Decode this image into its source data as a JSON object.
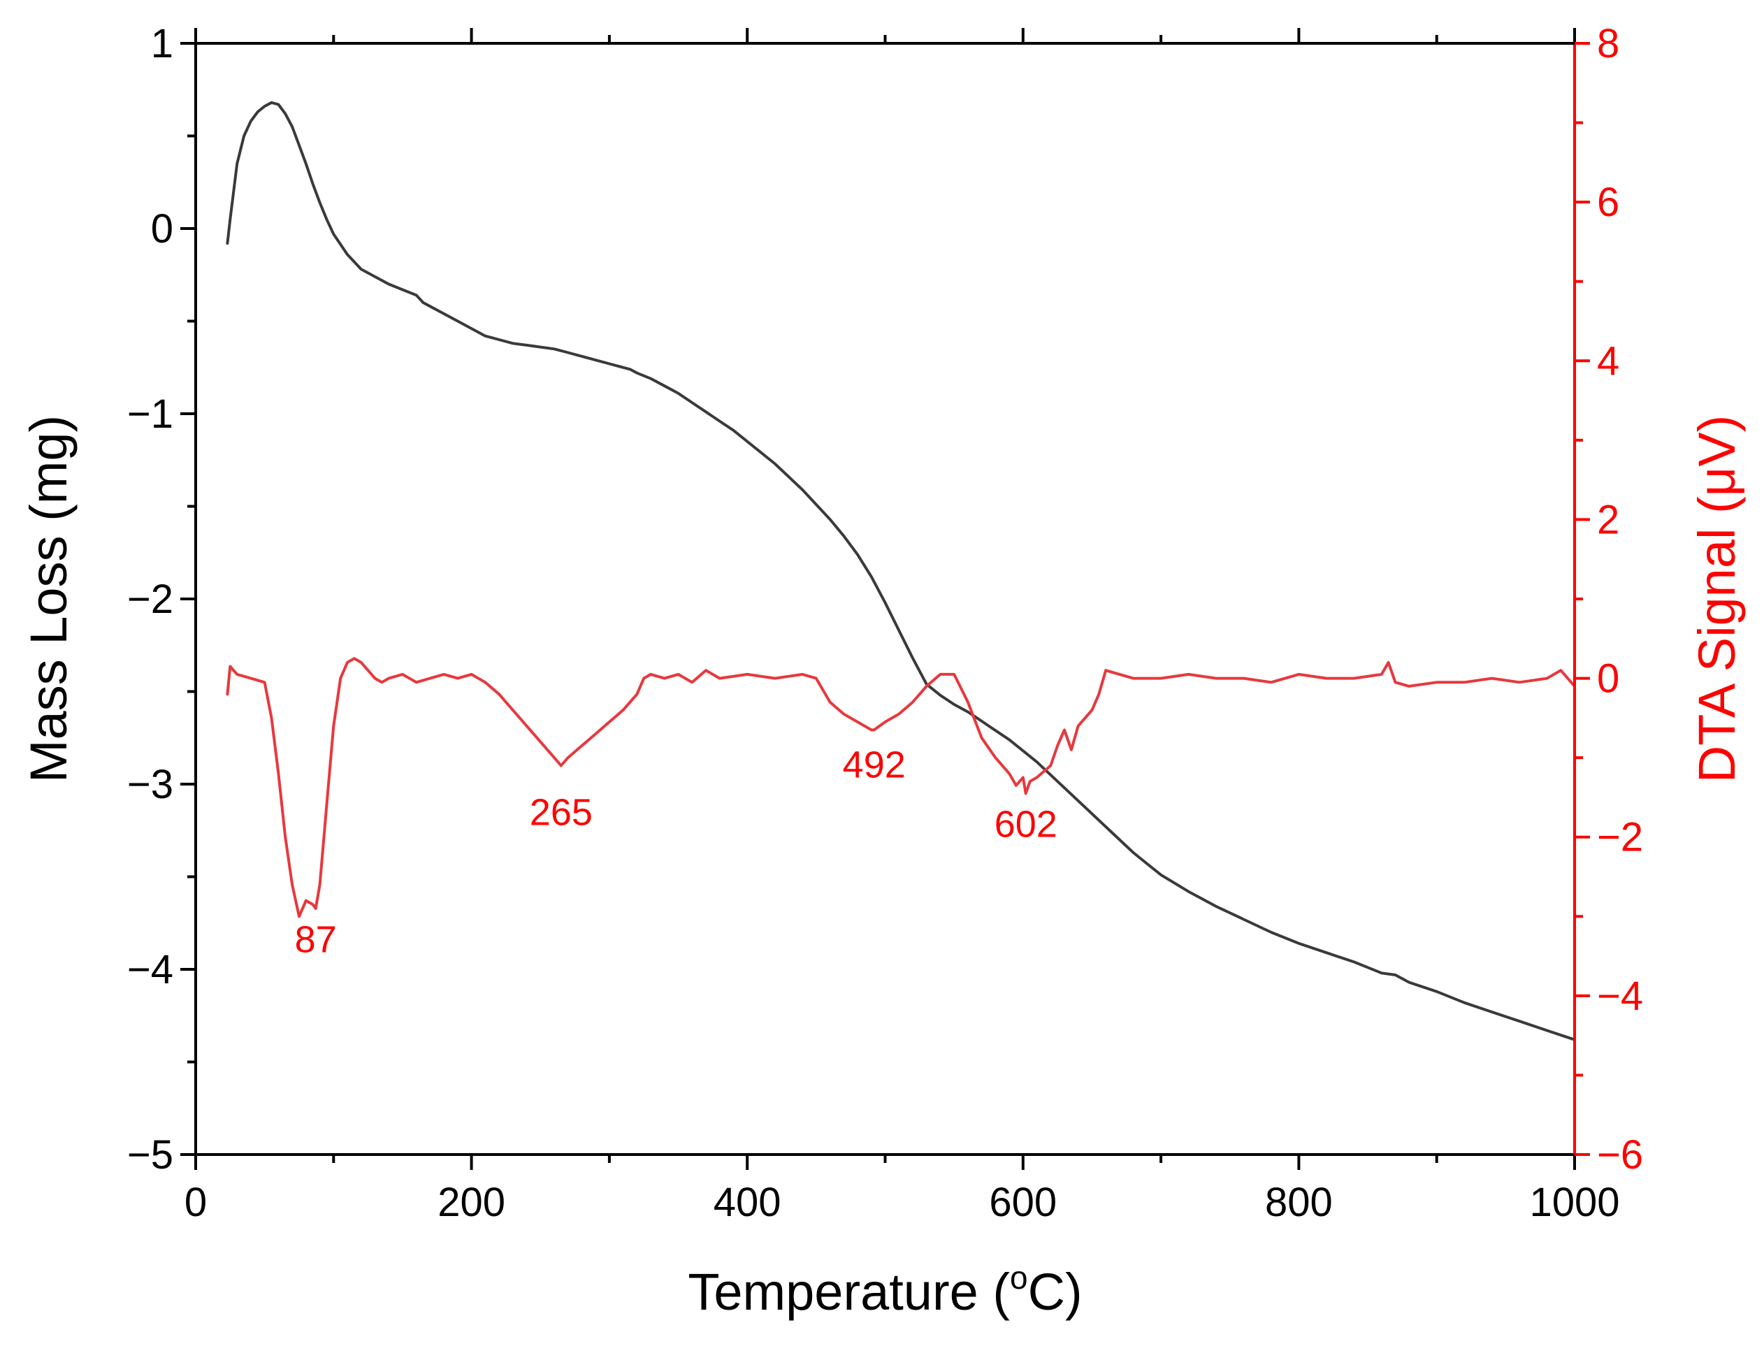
{
  "chart_data": {
    "type": "line",
    "title": "",
    "xlabel": "Temperature (oC)",
    "xlabel_parts": {
      "main": "Temperature (",
      "sup": "o",
      "rest": "C)"
    },
    "ylabel": "Mass Loss (mg)",
    "y2label": "DTA Signal (μV)",
    "xlim": [
      0,
      1000
    ],
    "ylim": [
      -5,
      1
    ],
    "y2lim": [
      -6,
      8
    ],
    "grid": false,
    "legend": "none",
    "x_ticks": [
      "0",
      "200",
      "400",
      "600",
      "800",
      "1000"
    ],
    "y_ticks": [
      "−5",
      "−4",
      "−3",
      "−2",
      "−1",
      "0",
      "1"
    ],
    "y2_ticks": [
      "−6",
      "−4",
      "−2",
      "0",
      "2",
      "4",
      "6",
      "8"
    ],
    "colors": {
      "mass_series": "#3a3a3a",
      "dta_series": "#e8383d",
      "right_axis": "#ff0000",
      "annotation": "#ff0000",
      "axis": "#000000"
    },
    "series": [
      {
        "name": "Mass Loss",
        "axis": "left",
        "x": [
          23,
          25,
          30,
          35,
          40,
          45,
          50,
          55,
          60,
          65,
          70,
          75,
          80,
          85,
          90,
          95,
          100,
          110,
          120,
          130,
          140,
          150,
          160,
          165,
          170,
          180,
          190,
          200,
          210,
          220,
          230,
          240,
          250,
          260,
          270,
          280,
          290,
          300,
          310,
          315,
          320,
          330,
          340,
          350,
          360,
          370,
          380,
          390,
          400,
          410,
          420,
          430,
          440,
          450,
          460,
          470,
          480,
          490,
          500,
          510,
          520,
          530,
          540,
          550,
          560,
          570,
          580,
          590,
          600,
          610,
          620,
          630,
          640,
          650,
          660,
          670,
          680,
          690,
          700,
          720,
          740,
          760,
          780,
          800,
          820,
          840,
          850,
          860,
          870,
          880,
          900,
          920,
          940,
          960,
          980,
          1000
        ],
        "values": [
          -0.08,
          0.05,
          0.35,
          0.5,
          0.58,
          0.63,
          0.66,
          0.68,
          0.67,
          0.62,
          0.55,
          0.45,
          0.35,
          0.24,
          0.14,
          0.05,
          -0.03,
          -0.14,
          -0.22,
          -0.26,
          -0.3,
          -0.33,
          -0.36,
          -0.4,
          -0.42,
          -0.46,
          -0.5,
          -0.54,
          -0.58,
          -0.6,
          -0.62,
          -0.63,
          -0.64,
          -0.65,
          -0.67,
          -0.69,
          -0.71,
          -0.73,
          -0.75,
          -0.76,
          -0.78,
          -0.81,
          -0.85,
          -0.89,
          -0.94,
          -0.99,
          -1.04,
          -1.09,
          -1.15,
          -1.21,
          -1.27,
          -1.34,
          -1.41,
          -1.49,
          -1.57,
          -1.66,
          -1.76,
          -1.88,
          -2.02,
          -2.17,
          -2.32,
          -2.46,
          -2.52,
          -2.57,
          -2.61,
          -2.66,
          -2.71,
          -2.76,
          -2.82,
          -2.88,
          -2.95,
          -3.02,
          -3.09,
          -3.16,
          -3.23,
          -3.3,
          -3.37,
          -3.43,
          -3.49,
          -3.58,
          -3.66,
          -3.73,
          -3.8,
          -3.86,
          -3.91,
          -3.96,
          -3.99,
          -4.02,
          -4.03,
          -4.07,
          -4.12,
          -4.18,
          -4.23,
          -4.28,
          -4.33,
          -4.38
        ]
      },
      {
        "name": "DTA Signal",
        "axis": "right",
        "x": [
          23,
          25,
          30,
          40,
          50,
          55,
          60,
          65,
          70,
          75,
          80,
          85,
          87,
          90,
          95,
          100,
          105,
          110,
          115,
          120,
          125,
          130,
          135,
          140,
          150,
          160,
          170,
          180,
          190,
          200,
          210,
          220,
          230,
          240,
          250,
          260,
          265,
          270,
          280,
          290,
          300,
          310,
          320,
          325,
          330,
          340,
          350,
          360,
          370,
          380,
          400,
          420,
          440,
          450,
          460,
          470,
          480,
          490,
          492,
          500,
          510,
          520,
          530,
          540,
          550,
          560,
          570,
          580,
          590,
          595,
          600,
          602,
          605,
          610,
          620,
          625,
          630,
          635,
          640,
          650,
          655,
          660,
          670,
          680,
          700,
          720,
          740,
          760,
          780,
          800,
          820,
          840,
          860,
          865,
          870,
          880,
          900,
          920,
          940,
          960,
          980,
          990,
          1000
        ],
        "values": [
          -0.2,
          0.15,
          0.05,
          0.0,
          -0.05,
          -0.5,
          -1.2,
          -2.0,
          -2.6,
          -3.0,
          -2.8,
          -2.85,
          -2.9,
          -2.6,
          -1.6,
          -0.6,
          0.0,
          0.2,
          0.25,
          0.2,
          0.1,
          0.0,
          -0.05,
          0.0,
          0.05,
          -0.05,
          0.0,
          0.05,
          0.0,
          0.05,
          -0.05,
          -0.2,
          -0.4,
          -0.6,
          -0.8,
          -1.0,
          -1.1,
          -1.0,
          -0.85,
          -0.7,
          -0.55,
          -0.4,
          -0.2,
          0.0,
          0.05,
          0.0,
          0.05,
          -0.05,
          0.1,
          0.0,
          0.05,
          0.0,
          0.05,
          0.0,
          -0.3,
          -0.45,
          -0.55,
          -0.65,
          -0.65,
          -0.55,
          -0.45,
          -0.3,
          -0.1,
          0.05,
          0.05,
          -0.3,
          -0.75,
          -1.0,
          -1.2,
          -1.35,
          -1.25,
          -1.45,
          -1.3,
          -1.25,
          -1.1,
          -0.85,
          -0.65,
          -0.9,
          -0.6,
          -0.4,
          -0.2,
          0.1,
          0.05,
          0.0,
          0.0,
          0.05,
          0.0,
          0.0,
          -0.05,
          0.05,
          0.0,
          0.0,
          0.05,
          0.2,
          -0.05,
          -0.1,
          -0.05,
          -0.05,
          0.0,
          -0.05,
          0.0,
          0.1,
          -0.1
        ]
      }
    ],
    "annotations": [
      {
        "text": "87",
        "x": 87,
        "y2": -3.45
      },
      {
        "text": "265",
        "x": 265,
        "y2": -1.85
      },
      {
        "text": "492",
        "x": 492,
        "y2": -1.25
      },
      {
        "text": "602",
        "x": 602,
        "y2": -2.0
      }
    ]
  }
}
